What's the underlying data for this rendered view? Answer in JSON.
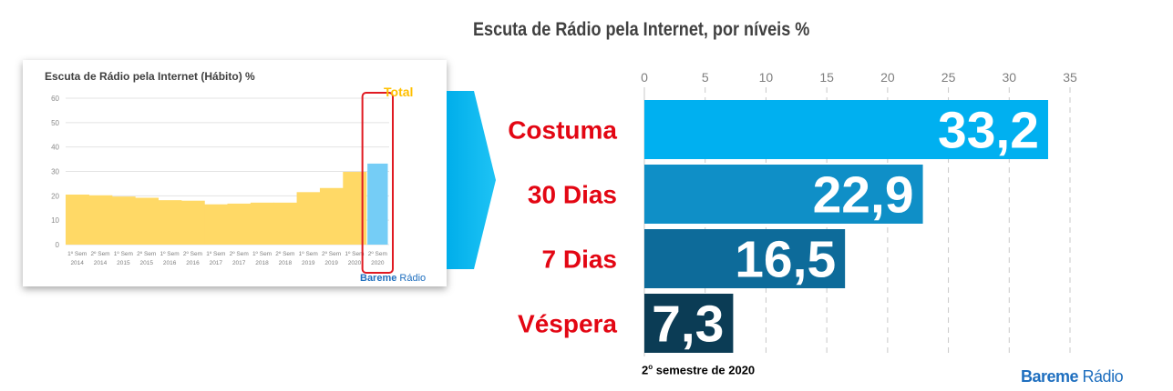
{
  "main_chart": {
    "title": "Escuta de Rádio pela Internet, por níveis %",
    "footnote_number": "2",
    "footnote_sup": "o",
    "footnote_rest": " semestre de 2020",
    "brand_bold": "Bareme",
    "brand_light": " Rádio"
  },
  "chart_data": [
    {
      "type": "bar",
      "orientation": "horizontal",
      "title": "Escuta de Rádio pela Internet, por níveis %",
      "categories": [
        "Costuma",
        "30 Dias",
        "7 Dias",
        "Véspera"
      ],
      "values": [
        33.2,
        22.9,
        16.5,
        7.3
      ],
      "value_labels": [
        "33,2",
        "22,9",
        "16,5",
        "7,3"
      ],
      "bar_colors": [
        "#00b0f0",
        "#0f8fc7",
        "#0d6b9a",
        "#0b3c55"
      ],
      "xlim": [
        0,
        35
      ],
      "xticks": [
        0,
        5,
        10,
        15,
        20,
        25,
        30,
        35
      ],
      "axis_position": "top",
      "grid": true,
      "category_label_color": "#e30613"
    },
    {
      "type": "bar",
      "title": "Escuta de Rádio pela Internet (Hábito) %",
      "categories": [
        "1º Sem 2014",
        "2º Sem 2014",
        "1º Sem 2015",
        "2º Sem 2015",
        "1º Sem 2016",
        "2º Sem 2016",
        "1º Sem 2017",
        "2º Sem 2017",
        "1º Sem 2018",
        "2º Sem 2018",
        "1º Sem 2019",
        "2º Sem 2019",
        "1º Sem 2020",
        "2º Sem 2020"
      ],
      "x_labels_line1": [
        "1º Sem",
        "2º Sem",
        "1º Sem",
        "2º Sem",
        "1º Sem",
        "2º Sem",
        "1º Sem",
        "2º Sem",
        "1º Sem",
        "2º Sem",
        "1º Sem",
        "2º Sem",
        "1º Sem",
        "2º Sem"
      ],
      "x_labels_line2": [
        "2014",
        "2014",
        "2015",
        "2015",
        "2016",
        "2016",
        "2017",
        "2017",
        "2018",
        "2018",
        "2019",
        "2019",
        "2020",
        "2020"
      ],
      "values": [
        20.5,
        20.2,
        19.7,
        19.2,
        18.2,
        18.0,
        16.5,
        16.8,
        17.2,
        17.2,
        21.5,
        23.2,
        29.8,
        33.2
      ],
      "bar_colors": [
        "#ffd966",
        "#ffd966",
        "#ffd966",
        "#ffd966",
        "#ffd966",
        "#ffd966",
        "#ffd966",
        "#ffd966",
        "#ffd966",
        "#ffd966",
        "#ffd966",
        "#ffd966",
        "#ffd966",
        "#75cdf6"
      ],
      "ylim": [
        0,
        60
      ],
      "yticks": [
        0,
        10,
        20,
        30,
        40,
        50,
        60
      ],
      "annotation": "Total",
      "grid": true,
      "brand_bold": "Bareme",
      "brand_light": " Rádio"
    }
  ]
}
